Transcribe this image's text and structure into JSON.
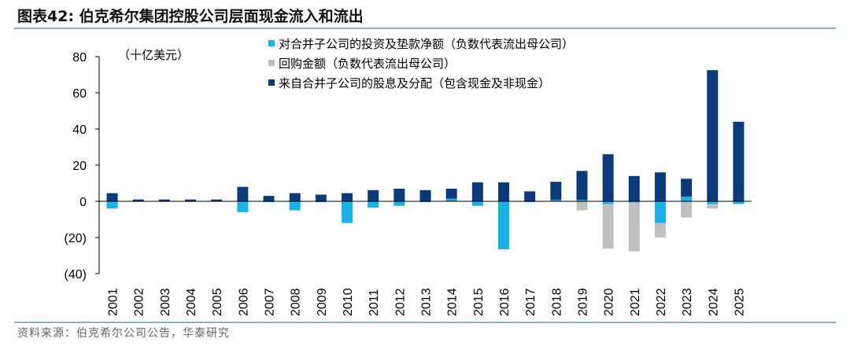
{
  "figure": {
    "title": "图表42:  伯克希尔集团控股公司层面现金流入和流出",
    "source": "资料来源：伯克希尔公司公告，华泰研究"
  },
  "colors": {
    "subsidiary_investment": "#16b2ec",
    "buyback": "#c0c0c0",
    "dividends_from_subsidiaries": "#083a7c",
    "rule": "#8faed6"
  },
  "chart_data": {
    "type": "bar",
    "stacked": true,
    "unit_label": "（十亿美元）",
    "categories": [
      "2001",
      "2002",
      "2003",
      "2004",
      "2005",
      "2006",
      "2007",
      "2008",
      "2009",
      "2010",
      "2011",
      "2012",
      "2013",
      "2014",
      "2015",
      "2016",
      "2017",
      "2018",
      "2019",
      "2020",
      "2021",
      "2022",
      "2023",
      "2024",
      "2025"
    ],
    "ylim": [
      -40,
      80
    ],
    "yticks": [
      80,
      60,
      40,
      20,
      0,
      -20,
      -40
    ],
    "ytick_labels": [
      "80",
      "60",
      "40",
      "20",
      "0",
      "(20)",
      "(40)"
    ],
    "legend_position": "top",
    "series": [
      {
        "name": "对合并子公司的投资及垫款净额（负数代表流出母公司）",
        "values": [
          -4.0,
          -0.3,
          -0.3,
          -0.3,
          -0.2,
          -6.0,
          -0.5,
          -5.0,
          -0.5,
          -12.0,
          -3.5,
          -2.5,
          -0.5,
          1.5,
          -2.5,
          -26.5,
          -0.5,
          0.8,
          0.8,
          -1.5,
          -0.7,
          -12.0,
          2.5,
          -1.5,
          -1.5
        ]
      },
      {
        "name": "回购金额（负数代表流出母公司）",
        "values": [
          0,
          0,
          0,
          0,
          0,
          0,
          0,
          0,
          0,
          0,
          0,
          0,
          0,
          0,
          0,
          0,
          0,
          0,
          -5.0,
          -24.7,
          -27.0,
          -8.0,
          -9.0,
          -2.5,
          0
        ]
      },
      {
        "name": "来自合并子公司的股息及分配（包含现金及非现金）",
        "values": [
          4.5,
          1.0,
          1.0,
          1.0,
          1.0,
          8.0,
          3.0,
          4.5,
          3.7,
          4.5,
          6.2,
          7.0,
          6.2,
          5.5,
          10.5,
          10.5,
          5.5,
          10.0,
          16.0,
          26.0,
          14.0,
          16.0,
          10.0,
          72.5,
          44.0
        ]
      }
    ]
  }
}
